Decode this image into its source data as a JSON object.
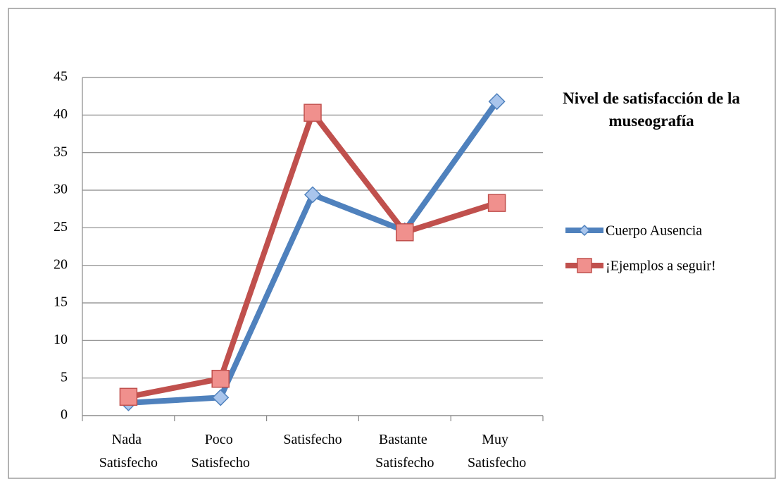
{
  "chart_data": {
    "type": "line",
    "title": "Nivel de satisfacción de la museografía",
    "categories": [
      "Nada Satisfecho",
      "Poco Satisfecho",
      "Satisfecho",
      "Bastante Satisfecho",
      "Muy Satisfecho"
    ],
    "series": [
      {
        "name": "Cuerpo Ausencia",
        "color": "#4f81bd",
        "marker": "diamond",
        "values": [
          1.7,
          2.4,
          29.4,
          24.6,
          41.8
        ]
      },
      {
        "name": "¡Ejemplos a seguir!",
        "color": "#c0504d",
        "marker": "square",
        "values": [
          2.5,
          4.9,
          40.3,
          24.4,
          28.3
        ]
      }
    ],
    "ylim": [
      0,
      45
    ],
    "yticks": [
      0,
      5,
      10,
      15,
      20,
      25,
      30,
      35,
      40,
      45
    ],
    "grid": true,
    "legend": "right"
  }
}
